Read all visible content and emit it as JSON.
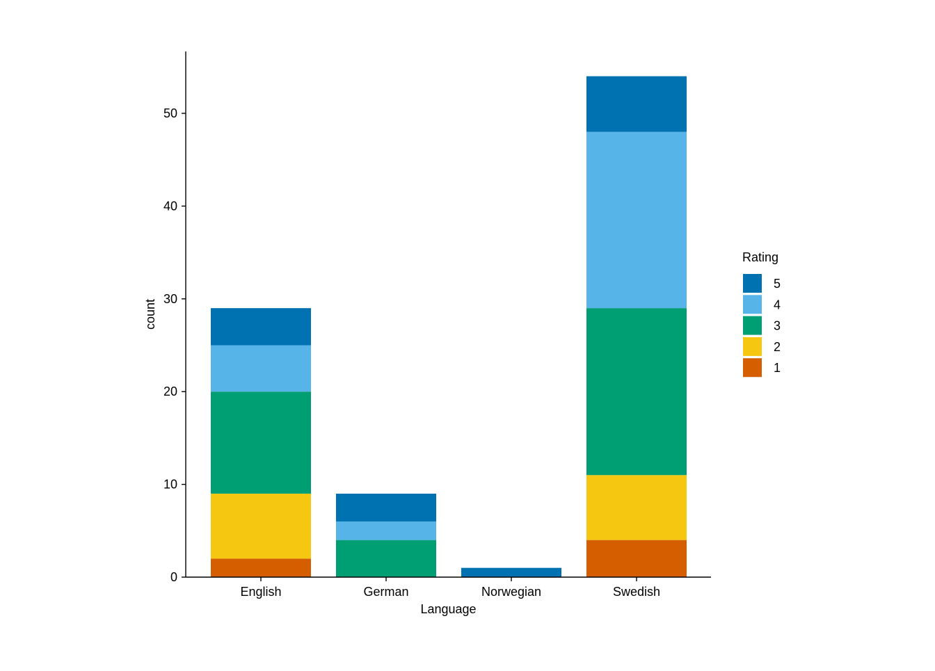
{
  "chart_data": {
    "type": "bar",
    "stacked": true,
    "title": "",
    "xlabel": "Language",
    "ylabel": "count",
    "categories": [
      "English",
      "German",
      "Norwegian",
      "Swedish"
    ],
    "ylim": [
      0,
      56.7
    ],
    "yticks": [
      0,
      10,
      20,
      30,
      40,
      50
    ],
    "grid": false,
    "legend": {
      "title": "Rating",
      "placement": "right"
    },
    "series": [
      {
        "name": "1",
        "color": "#D55E00",
        "values": [
          2,
          0,
          0,
          4
        ]
      },
      {
        "name": "2",
        "color": "#F5C710",
        "values": [
          7,
          0,
          0,
          7
        ]
      },
      {
        "name": "3",
        "color": "#009E73",
        "values": [
          11,
          4,
          0,
          18
        ]
      },
      {
        "name": "4",
        "color": "#56B4E9",
        "values": [
          5,
          2,
          0,
          19
        ]
      },
      {
        "name": "5",
        "color": "#0072B2",
        "values": [
          4,
          3,
          1,
          6
        ]
      }
    ]
  }
}
